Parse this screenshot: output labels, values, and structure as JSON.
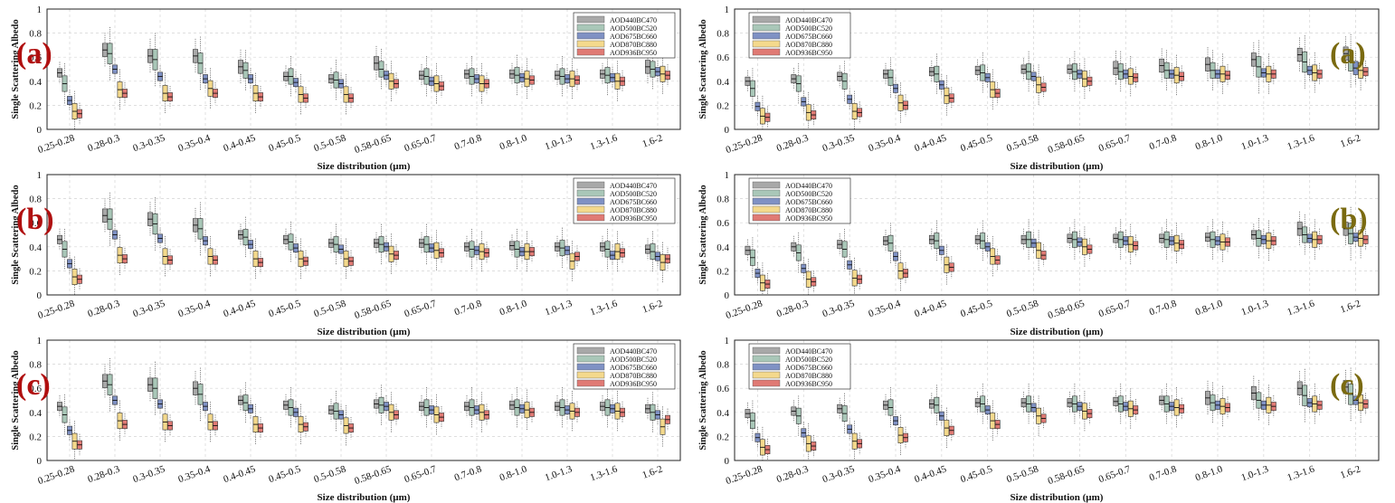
{
  "colors": {
    "series": [
      "#a8a8a8",
      "#a9c7b8",
      "#7f91c4",
      "#f4d98c",
      "#e07a74"
    ],
    "label_left": "#b01010",
    "label_right": "#7a6a10",
    "grid": "#d4d4d4"
  },
  "chart_data": [
    {
      "type": "box",
      "panel_label": "(a)",
      "side": "left",
      "ylabel": "Single Scattering Albedo",
      "xlabel": "Size distribution (µm)",
      "ylim": [
        0,
        1
      ],
      "yticks": [
        "0",
        "0.2",
        "0.4",
        "0.6",
        "0.8",
        "1"
      ],
      "legend_position": "top-right",
      "categories": [
        "0.25-0.28",
        "0.28-0.3",
        "0.3-0.35",
        "0.35-0.4",
        "0.4-0.45",
        "0.45-0.5",
        "0.5-0.58",
        "0.58-0.65",
        "0.65-0.7",
        "0.7-0.8",
        "0.8-1.0",
        "1.0-1.3",
        "1.3-1.6",
        "1.6-2"
      ],
      "series": [
        {
          "name": "AOD440BC470",
          "medians": [
            0.47,
            0.66,
            0.61,
            0.61,
            0.52,
            0.44,
            0.42,
            0.55,
            0.45,
            0.46,
            0.46,
            0.45,
            0.46,
            0.52
          ]
        },
        {
          "name": "AOD500BC520",
          "medians": [
            0.38,
            0.63,
            0.58,
            0.55,
            0.49,
            0.44,
            0.41,
            0.5,
            0.44,
            0.44,
            0.45,
            0.44,
            0.45,
            0.5
          ]
        },
        {
          "name": "AOD675BC660",
          "medians": [
            0.24,
            0.5,
            0.44,
            0.42,
            0.42,
            0.39,
            0.38,
            0.45,
            0.4,
            0.42,
            0.43,
            0.42,
            0.43,
            0.48
          ]
        },
        {
          "name": "AOD870BC880",
          "medians": [
            0.15,
            0.33,
            0.3,
            0.34,
            0.3,
            0.29,
            0.29,
            0.4,
            0.38,
            0.38,
            0.42,
            0.42,
            0.4,
            0.46
          ]
        },
        {
          "name": "AOD936BC950",
          "medians": [
            0.13,
            0.3,
            0.27,
            0.3,
            0.27,
            0.26,
            0.26,
            0.38,
            0.36,
            0.38,
            0.41,
            0.41,
            0.4,
            0.45
          ]
        }
      ]
    },
    {
      "type": "box",
      "panel_label": "(a)",
      "side": "right",
      "ylabel": "Single Scattering Albedo",
      "xlabel": "Size distribution (µm)",
      "ylim": [
        0,
        1
      ],
      "yticks": [
        "0",
        "0.2",
        "0.4",
        "0.6",
        "0.8",
        "1"
      ],
      "legend_position": "top-left",
      "categories": [
        "0.25-0.28",
        "0.28-0.3",
        "0.3-0.35",
        "0.35-0.4",
        "0.4-0.45",
        "0.45-0.5",
        "0.5-0.58",
        "0.58-0.65",
        "0.65-0.7",
        "0.7-0.8",
        "0.8-1.0",
        "1.0-1.3",
        "1.3-1.6",
        "1.6-2"
      ],
      "series": [
        {
          "name": "AOD440BC470",
          "medians": [
            0.4,
            0.42,
            0.44,
            0.46,
            0.48,
            0.49,
            0.5,
            0.5,
            0.51,
            0.53,
            0.54,
            0.58,
            0.62,
            0.63
          ]
        },
        {
          "name": "AOD500BC520",
          "medians": [
            0.34,
            0.38,
            0.4,
            0.43,
            0.46,
            0.47,
            0.48,
            0.48,
            0.48,
            0.49,
            0.49,
            0.52,
            0.56,
            0.57
          ]
        },
        {
          "name": "AOD675BC660",
          "medians": [
            0.19,
            0.23,
            0.25,
            0.34,
            0.37,
            0.43,
            0.44,
            0.46,
            0.46,
            0.46,
            0.46,
            0.47,
            0.49,
            0.51
          ]
        },
        {
          "name": "AOD870BC880",
          "medians": [
            0.11,
            0.14,
            0.15,
            0.22,
            0.28,
            0.33,
            0.37,
            0.42,
            0.44,
            0.45,
            0.46,
            0.46,
            0.47,
            0.49
          ]
        },
        {
          "name": "AOD936BC950",
          "medians": [
            0.1,
            0.12,
            0.14,
            0.2,
            0.26,
            0.3,
            0.35,
            0.4,
            0.43,
            0.44,
            0.45,
            0.46,
            0.46,
            0.48
          ]
        }
      ]
    },
    {
      "type": "box",
      "panel_label": "(b)",
      "side": "left",
      "ylabel": "Single Scattering Albedo",
      "xlabel": "Size distribution (µm)",
      "ylim": [
        0,
        1
      ],
      "yticks": [
        "0",
        "0.2",
        "0.4",
        "0.6",
        "0.8",
        "1"
      ],
      "legend_position": "top-right",
      "categories": [
        "0.25-0.28",
        "0.28-0.3",
        "0.3-0.35",
        "0.35-0.4",
        "0.4-0.45",
        "0.45-0.5",
        "0.5-0.58",
        "0.58-0.65",
        "0.65-0.7",
        "0.7-0.8",
        "0.8-1.0",
        "1.0-1.3",
        "1.3-1.6",
        "1.6-2"
      ],
      "series": [
        {
          "name": "AOD440BC470",
          "medians": [
            0.46,
            0.66,
            0.63,
            0.58,
            0.5,
            0.46,
            0.43,
            0.43,
            0.43,
            0.4,
            0.41,
            0.4,
            0.4,
            0.38
          ]
        },
        {
          "name": "AOD500BC520",
          "medians": [
            0.38,
            0.63,
            0.59,
            0.55,
            0.48,
            0.44,
            0.42,
            0.42,
            0.42,
            0.38,
            0.38,
            0.39,
            0.38,
            0.36
          ]
        },
        {
          "name": "AOD675BC660",
          "medians": [
            0.26,
            0.5,
            0.47,
            0.45,
            0.42,
            0.39,
            0.38,
            0.4,
            0.39,
            0.37,
            0.36,
            0.37,
            0.33,
            0.32
          ]
        },
        {
          "name": "AOD870BC880",
          "medians": [
            0.15,
            0.33,
            0.32,
            0.32,
            0.3,
            0.3,
            0.3,
            0.34,
            0.37,
            0.36,
            0.36,
            0.28,
            0.36,
            0.27
          ]
        },
        {
          "name": "AOD936BC950",
          "medians": [
            0.13,
            0.3,
            0.29,
            0.29,
            0.27,
            0.28,
            0.28,
            0.33,
            0.35,
            0.35,
            0.36,
            0.32,
            0.35,
            0.3
          ]
        }
      ]
    },
    {
      "type": "box",
      "panel_label": "(b)",
      "side": "right",
      "ylabel": "Single Scattering Albedo",
      "xlabel": "Size distribution (µm)",
      "ylim": [
        0,
        1
      ],
      "yticks": [
        "0",
        "0.2",
        "0.4",
        "0.6",
        "0.8",
        "1"
      ],
      "legend_position": "top-left",
      "categories": [
        "0.25-0.28",
        "0.28-0.3",
        "0.3-0.35",
        "0.35-0.4",
        "0.4-0.45",
        "0.45-0.5",
        "0.5-0.58",
        "0.58-0.65",
        "0.65-0.7",
        "0.7-0.8",
        "0.8-1.0",
        "1.0-1.3",
        "1.3-1.6",
        "1.6-2"
      ],
      "series": [
        {
          "name": "AOD440BC470",
          "medians": [
            0.37,
            0.4,
            0.42,
            0.45,
            0.46,
            0.46,
            0.46,
            0.47,
            0.47,
            0.47,
            0.48,
            0.5,
            0.55,
            0.55
          ]
        },
        {
          "name": "AOD500BC520",
          "medians": [
            0.31,
            0.35,
            0.38,
            0.43,
            0.45,
            0.45,
            0.46,
            0.46,
            0.46,
            0.46,
            0.46,
            0.47,
            0.5,
            0.51
          ]
        },
        {
          "name": "AOD675BC660",
          "medians": [
            0.18,
            0.22,
            0.25,
            0.32,
            0.37,
            0.4,
            0.43,
            0.44,
            0.45,
            0.45,
            0.45,
            0.46,
            0.47,
            0.48
          ]
        },
        {
          "name": "AOD870BC880",
          "medians": [
            0.1,
            0.13,
            0.14,
            0.2,
            0.25,
            0.32,
            0.37,
            0.4,
            0.42,
            0.43,
            0.44,
            0.45,
            0.46,
            0.47
          ]
        },
        {
          "name": "AOD936BC950",
          "medians": [
            0.09,
            0.11,
            0.13,
            0.18,
            0.23,
            0.29,
            0.33,
            0.38,
            0.41,
            0.42,
            0.44,
            0.45,
            0.46,
            0.46
          ]
        }
      ]
    },
    {
      "type": "box",
      "panel_label": "(c)",
      "side": "left",
      "ylabel": "Single Scattering Albedo",
      "xlabel": "Size distribution (µm)",
      "ylim": [
        0,
        1
      ],
      "yticks": [
        "0",
        "0.2",
        "0.4",
        "0.6",
        "0.8",
        "1"
      ],
      "legend_position": "top-right",
      "categories": [
        "0.25-0.28",
        "0.28-0.3",
        "0.3-0.35",
        "0.35-0.4",
        "0.4-0.45",
        "0.45-0.5",
        "0.5-0.58",
        "0.58-0.65",
        "0.65-0.7",
        "0.7-0.8",
        "0.8-1.0",
        "1.0-1.3",
        "1.3-1.6",
        "1.6-2"
      ],
      "series": [
        {
          "name": "AOD440BC470",
          "medians": [
            0.45,
            0.66,
            0.63,
            0.6,
            0.5,
            0.46,
            0.42,
            0.47,
            0.45,
            0.45,
            0.46,
            0.45,
            0.45,
            0.43
          ]
        },
        {
          "name": "AOD500BC520",
          "medians": [
            0.38,
            0.63,
            0.6,
            0.55,
            0.48,
            0.44,
            0.41,
            0.46,
            0.44,
            0.44,
            0.44,
            0.44,
            0.44,
            0.4
          ]
        },
        {
          "name": "AOD675BC660",
          "medians": [
            0.25,
            0.5,
            0.47,
            0.45,
            0.43,
            0.4,
            0.38,
            0.45,
            0.42,
            0.42,
            0.43,
            0.42,
            0.43,
            0.38
          ]
        },
        {
          "name": "AOD870BC880",
          "medians": [
            0.16,
            0.33,
            0.32,
            0.32,
            0.3,
            0.3,
            0.29,
            0.4,
            0.38,
            0.4,
            0.42,
            0.41,
            0.41,
            0.28
          ]
        },
        {
          "name": "AOD936BC950",
          "medians": [
            0.13,
            0.3,
            0.29,
            0.29,
            0.27,
            0.28,
            0.27,
            0.38,
            0.36,
            0.38,
            0.4,
            0.4,
            0.4,
            0.34
          ]
        }
      ]
    },
    {
      "type": "box",
      "panel_label": "(c)",
      "side": "right",
      "ylabel": "Single Scattering Albedo",
      "xlabel": "Size distribution (µm)",
      "ylim": [
        0,
        1
      ],
      "yticks": [
        "0",
        "0.2",
        "0.4",
        "0.6",
        "0.8",
        "1"
      ],
      "legend_position": "top-left",
      "categories": [
        "0.25-0.28",
        "0.28-0.3",
        "0.3-0.35",
        "0.35-0.4",
        "0.4-0.45",
        "0.45-0.5",
        "0.5-0.58",
        "0.58-0.65",
        "0.65-0.7",
        "0.7-0.8",
        "0.8-1.0",
        "1.0-1.3",
        "1.3-1.6",
        "1.6-2"
      ],
      "series": [
        {
          "name": "AOD440BC470",
          "medians": [
            0.39,
            0.41,
            0.43,
            0.46,
            0.47,
            0.48,
            0.48,
            0.48,
            0.49,
            0.5,
            0.52,
            0.56,
            0.6,
            0.61
          ]
        },
        {
          "name": "AOD500BC520",
          "medians": [
            0.33,
            0.37,
            0.39,
            0.44,
            0.46,
            0.47,
            0.47,
            0.47,
            0.47,
            0.47,
            0.48,
            0.5,
            0.54,
            0.55
          ]
        },
        {
          "name": "AOD675BC660",
          "medians": [
            0.19,
            0.23,
            0.26,
            0.33,
            0.37,
            0.42,
            0.44,
            0.45,
            0.45,
            0.45,
            0.46,
            0.46,
            0.48,
            0.5
          ]
        },
        {
          "name": "AOD870BC880",
          "medians": [
            0.11,
            0.14,
            0.16,
            0.21,
            0.27,
            0.33,
            0.37,
            0.41,
            0.43,
            0.44,
            0.45,
            0.46,
            0.47,
            0.48
          ]
        },
        {
          "name": "AOD936BC950",
          "medians": [
            0.09,
            0.12,
            0.14,
            0.19,
            0.25,
            0.3,
            0.35,
            0.39,
            0.42,
            0.43,
            0.44,
            0.45,
            0.46,
            0.47
          ]
        }
      ]
    }
  ]
}
